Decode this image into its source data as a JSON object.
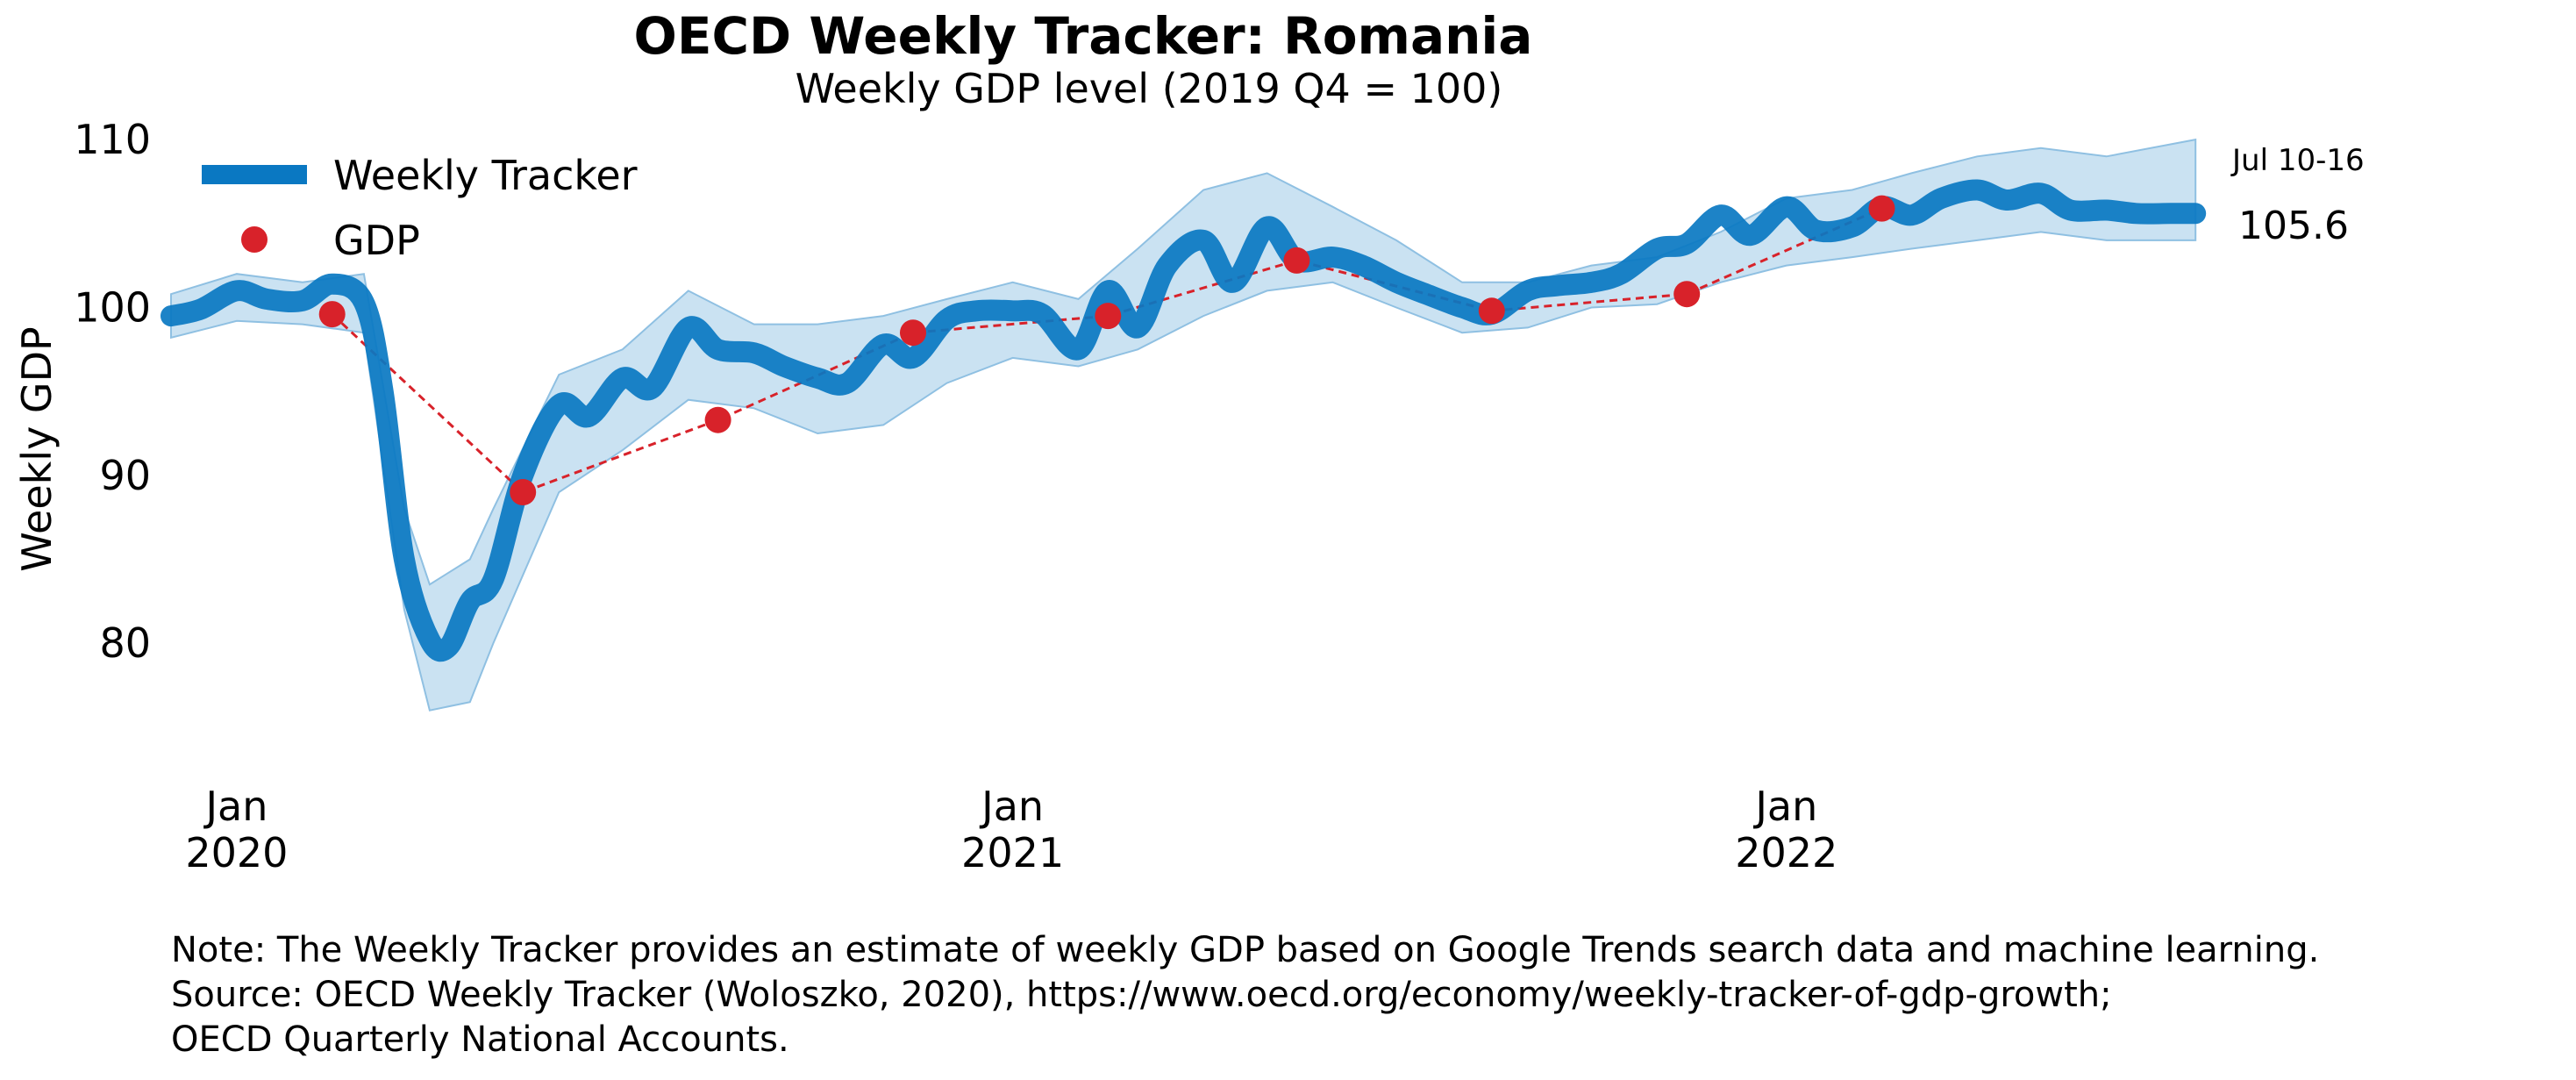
{
  "chart_data": {
    "type": "line",
    "title": "OECD Weekly Tracker: Romania",
    "subtitle": "Weekly GDP level (2019 Q4 = 100)",
    "ylabel": "Weekly GDP",
    "ylim": [
      74,
      111
    ],
    "xlim": [
      "2019-12-01",
      "2022-07-22"
    ],
    "yticks": [
      80,
      90,
      100,
      110
    ],
    "xticks": [
      {
        "date": "2020-01-01",
        "line1": "Jan",
        "line2": "2020"
      },
      {
        "date": "2021-01-01",
        "line1": "Jan",
        "line2": "2021"
      },
      {
        "date": "2022-01-01",
        "line1": "Jan",
        "line2": "2022"
      }
    ],
    "grid": false,
    "legend": {
      "placement": "top-left",
      "entries": [
        "Weekly Tracker",
        "GDP"
      ]
    },
    "colors": {
      "tracker": "#0a78c2",
      "band": "#b8d8ee",
      "gdp": "#d8222a"
    },
    "series": [
      {
        "name": "Weekly Tracker",
        "x": [
          "2019-12-01",
          "2019-12-15",
          "2020-01-01",
          "2020-01-15",
          "2020-02-01",
          "2020-02-15",
          "2020-03-01",
          "2020-03-10",
          "2020-03-20",
          "2020-04-01",
          "2020-04-10",
          "2020-04-20",
          "2020-05-01",
          "2020-05-15",
          "2020-06-01",
          "2020-06-15",
          "2020-07-01",
          "2020-07-15",
          "2020-08-01",
          "2020-08-15",
          "2020-09-01",
          "2020-09-15",
          "2020-10-01",
          "2020-10-15",
          "2020-11-01",
          "2020-11-15",
          "2020-12-01",
          "2020-12-15",
          "2021-01-01",
          "2021-01-15",
          "2021-02-01",
          "2021-02-15",
          "2021-03-01",
          "2021-03-15",
          "2021-04-01",
          "2021-04-15",
          "2021-05-01",
          "2021-05-15",
          "2021-06-01",
          "2021-06-15",
          "2021-07-01",
          "2021-07-15",
          "2021-08-01",
          "2021-08-15",
          "2021-09-01",
          "2021-09-15",
          "2021-10-01",
          "2021-10-15",
          "2021-11-01",
          "2021-11-15",
          "2021-12-01",
          "2021-12-15",
          "2022-01-01",
          "2022-01-15",
          "2022-02-01",
          "2022-02-15",
          "2022-03-01",
          "2022-03-15",
          "2022-04-01",
          "2022-04-15",
          "2022-05-01",
          "2022-05-15",
          "2022-06-01",
          "2022-06-15",
          "2022-07-01",
          "2022-07-13"
        ],
        "values": [
          99.5,
          99.9,
          101.0,
          100.5,
          100.4,
          101.4,
          100.3,
          95.0,
          85.0,
          80.2,
          79.8,
          82.5,
          83.8,
          90.0,
          94.2,
          93.5,
          95.8,
          95.2,
          98.8,
          97.5,
          97.3,
          96.5,
          95.8,
          95.5,
          97.8,
          97.0,
          99.3,
          99.8,
          99.8,
          99.6,
          97.5,
          101.0,
          98.8,
          102.5,
          104.0,
          101.5,
          104.8,
          102.8,
          103.0,
          102.5,
          101.5,
          100.8,
          100.0,
          99.6,
          101.0,
          101.3,
          101.5,
          102.0,
          103.5,
          103.8,
          105.5,
          104.3,
          106.0,
          104.6,
          104.8,
          106.0,
          105.5,
          106.5,
          107.0,
          106.4,
          106.8,
          105.8,
          105.8,
          105.6,
          105.6,
          105.6
        ]
      },
      {
        "name": "GDP",
        "x": [
          "2020-02-15",
          "2020-05-15",
          "2020-08-15",
          "2020-11-15",
          "2021-02-15",
          "2021-05-15",
          "2021-08-15",
          "2021-11-15",
          "2022-02-15"
        ],
        "values": [
          99.6,
          89.0,
          93.3,
          98.5,
          99.5,
          102.8,
          99.8,
          100.8,
          105.9
        ]
      }
    ],
    "band": {
      "x": [
        "2019-12-01",
        "2020-01-01",
        "2020-02-01",
        "2020-03-01",
        "2020-03-20",
        "2020-04-01",
        "2020-04-20",
        "2020-05-01",
        "2020-06-01",
        "2020-07-01",
        "2020-08-01",
        "2020-09-01",
        "2020-10-01",
        "2020-11-01",
        "2020-12-01",
        "2021-01-01",
        "2021-02-01",
        "2021-03-01",
        "2021-04-01",
        "2021-05-01",
        "2021-06-01",
        "2021-07-01",
        "2021-08-01",
        "2021-09-01",
        "2021-10-01",
        "2021-11-01",
        "2021-12-01",
        "2022-01-01",
        "2022-02-01",
        "2022-03-01",
        "2022-04-01",
        "2022-05-01",
        "2022-06-01",
        "2022-07-13"
      ],
      "lower": [
        98.2,
        99.2,
        99.0,
        98.5,
        82.0,
        76.0,
        76.5,
        80.0,
        89.0,
        91.5,
        94.5,
        94.0,
        92.5,
        93.0,
        95.5,
        97.0,
        96.5,
        97.5,
        99.5,
        101.0,
        101.5,
        100.0,
        98.5,
        98.8,
        100.0,
        100.2,
        101.5,
        102.5,
        103.0,
        103.5,
        104.0,
        104.5,
        104.0,
        104.0
      ],
      "upper": [
        100.8,
        102.0,
        101.5,
        102.0,
        88.0,
        83.5,
        85.0,
        88.0,
        96.0,
        97.5,
        101.0,
        99.0,
        99.0,
        99.5,
        100.5,
        101.5,
        100.5,
        103.5,
        107.0,
        108.0,
        106.0,
        104.0,
        101.5,
        101.5,
        102.5,
        103.0,
        104.5,
        106.5,
        107.0,
        108.0,
        109.0,
        109.5,
        109.0,
        110.0
      ]
    },
    "end_label": {
      "date_range": "Jul 10-16",
      "value": "105.6"
    }
  },
  "notes": [
    "Note: The Weekly Tracker provides an estimate of weekly GDP based on Google Trends search data and machine learning.",
    "Source: OECD Weekly Tracker (Woloszko, 2020), https://www.oecd.org/economy/weekly-tracker-of-gdp-growth;",
    "OECD Quarterly National Accounts."
  ]
}
